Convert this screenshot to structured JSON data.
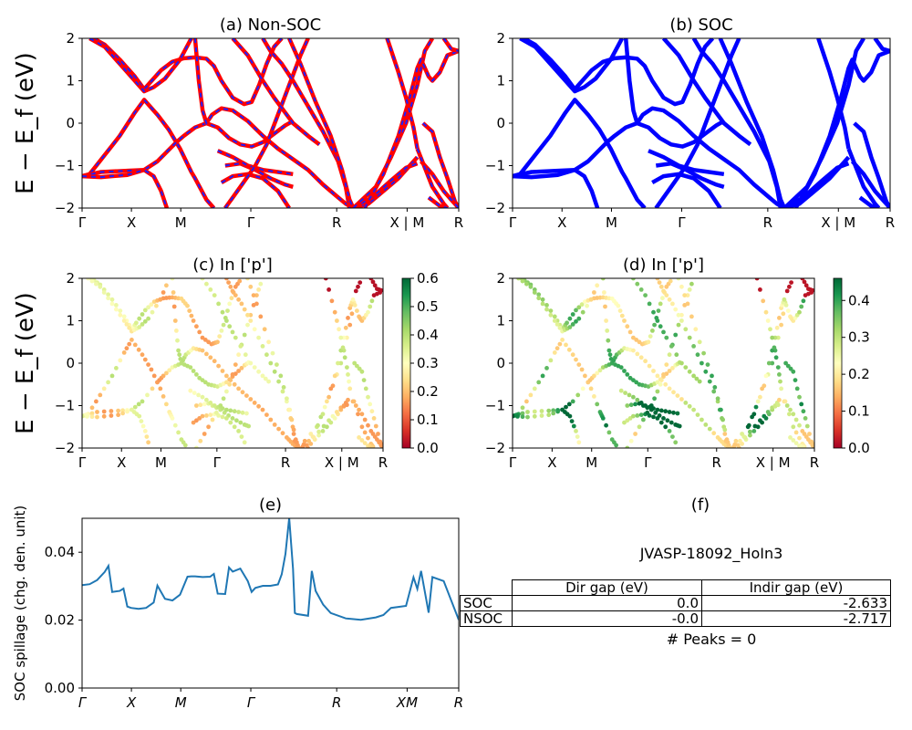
{
  "chart_data": [
    {
      "type": "line",
      "panel": "a",
      "title": "(a) Non-SOC",
      "ylabel": "E − E_f (eV)",
      "ylim": [
        -2,
        2
      ],
      "y_ticks": [
        "2",
        "1",
        "0",
        "−1",
        "−2"
      ],
      "k_labels": [
        "Γ",
        "X",
        "M",
        "Γ",
        "R",
        "X | M",
        "R"
      ],
      "series_colors": [
        "#ff0000",
        "#1f1fff"
      ],
      "bands": [
        [
          [
            0.0,
            -1.25
          ],
          [
            0.02,
            -1.2
          ],
          [
            0.06,
            -0.75
          ],
          [
            0.1,
            -0.3
          ],
          [
            0.14,
            0.25
          ],
          [
            0.165,
            0.55
          ],
          [
            0.2,
            0.2
          ],
          [
            0.23,
            -0.15
          ],
          [
            0.26,
            -0.6
          ],
          [
            0.29,
            -1.15
          ],
          [
            0.3,
            -1.3
          ],
          [
            0.33,
            -1.8
          ],
          [
            0.35,
            -2.0
          ]
        ],
        [
          [
            0.0,
            -1.25
          ],
          [
            0.05,
            -1.15
          ],
          [
            0.12,
            -1.12
          ],
          [
            0.165,
            -1.1
          ],
          [
            0.2,
            -0.9
          ],
          [
            0.25,
            -0.45
          ],
          [
            0.27,
            -0.3
          ],
          [
            0.3,
            -0.1
          ],
          [
            0.33,
            0.0
          ],
          [
            0.36,
            -0.1
          ],
          [
            0.39,
            -0.35
          ],
          [
            0.42,
            -0.5
          ],
          [
            0.45,
            -0.55
          ],
          [
            0.48,
            -0.45
          ],
          [
            0.51,
            -0.25
          ],
          [
            0.54,
            -0.05
          ],
          [
            0.56,
            0.05
          ]
        ],
        [
          [
            0.0,
            -1.25
          ],
          [
            0.05,
            -1.27
          ],
          [
            0.12,
            -1.22
          ],
          [
            0.165,
            -1.1
          ],
          [
            0.19,
            -1.25
          ],
          [
            0.21,
            -1.6
          ],
          [
            0.225,
            -2.0
          ]
        ],
        [
          [
            0.03,
            2.0
          ],
          [
            0.06,
            1.85
          ],
          [
            0.1,
            1.5
          ],
          [
            0.14,
            1.1
          ],
          [
            0.165,
            0.8
          ],
          [
            0.18,
            0.95
          ],
          [
            0.21,
            1.25
          ],
          [
            0.24,
            1.45
          ],
          [
            0.27,
            1.53
          ],
          [
            0.3,
            1.55
          ],
          [
            0.33,
            1.52
          ],
          [
            0.35,
            1.35
          ],
          [
            0.37,
            1.0
          ],
          [
            0.4,
            0.6
          ],
          [
            0.43,
            0.45
          ],
          [
            0.45,
            0.5
          ],
          [
            0.47,
            0.9
          ],
          [
            0.49,
            1.4
          ],
          [
            0.51,
            1.8
          ],
          [
            0.53,
            2.0
          ]
        ],
        [
          [
            0.02,
            2.0
          ],
          [
            0.06,
            1.8
          ],
          [
            0.1,
            1.4
          ],
          [
            0.14,
            1.0
          ],
          [
            0.165,
            0.75
          ],
          [
            0.19,
            0.85
          ],
          [
            0.22,
            1.05
          ],
          [
            0.26,
            1.5
          ],
          [
            0.29,
            2.0
          ]
        ],
        [
          [
            0.3,
            2.0
          ],
          [
            0.31,
            1.0
          ],
          [
            0.32,
            0.3
          ],
          [
            0.33,
            0.0
          ],
          [
            0.345,
            0.2
          ],
          [
            0.37,
            0.35
          ],
          [
            0.4,
            0.3
          ],
          [
            0.44,
            0.05
          ],
          [
            0.48,
            -0.3
          ],
          [
            0.52,
            -0.6
          ],
          [
            0.56,
            -0.85
          ],
          [
            0.6,
            -1.1
          ],
          [
            0.64,
            -1.45
          ],
          [
            0.68,
            -1.75
          ],
          [
            0.7,
            -1.9
          ],
          [
            0.72,
            -2.0
          ]
        ],
        [
          [
            0.38,
            -1.0
          ],
          [
            0.42,
            -0.95
          ],
          [
            0.46,
            -1.1
          ],
          [
            0.5,
            -1.3
          ],
          [
            0.54,
            -1.45
          ],
          [
            0.56,
            -1.5
          ]
        ],
        [
          [
            0.36,
            -0.65
          ],
          [
            0.4,
            -0.8
          ],
          [
            0.44,
            -1.0
          ],
          [
            0.48,
            -1.1
          ],
          [
            0.52,
            -1.15
          ],
          [
            0.56,
            -1.2
          ]
        ],
        [
          [
            0.37,
            -1.4
          ],
          [
            0.4,
            -1.25
          ],
          [
            0.44,
            -1.2
          ],
          [
            0.48,
            -1.3
          ],
          [
            0.52,
            -1.6
          ],
          [
            0.55,
            -2.0
          ]
        ],
        [
          [
            0.38,
            -2.0
          ],
          [
            0.42,
            -1.5
          ],
          [
            0.46,
            -1.0
          ],
          [
            0.49,
            -0.5
          ],
          [
            0.52,
            0.2
          ],
          [
            0.55,
            0.9
          ],
          [
            0.58,
            1.6
          ],
          [
            0.6,
            2.0
          ]
        ],
        [
          [
            0.4,
            2.0
          ],
          [
            0.44,
            1.6
          ],
          [
            0.48,
            1.0
          ],
          [
            0.51,
            0.6
          ],
          [
            0.56,
            0.0
          ],
          [
            0.6,
            -0.3
          ],
          [
            0.63,
            -0.5
          ]
        ],
        [
          [
            0.48,
            2.0
          ],
          [
            0.5,
            1.7
          ],
          [
            0.53,
            1.4
          ],
          [
            0.56,
            1.0
          ],
          [
            0.6,
            0.4
          ],
          [
            0.64,
            -0.2
          ],
          [
            0.68,
            -0.9
          ],
          [
            0.7,
            -1.5
          ],
          [
            0.71,
            -2.0
          ]
        ],
        [
          [
            0.55,
            2.0
          ],
          [
            0.58,
            1.4
          ],
          [
            0.62,
            0.5
          ],
          [
            0.66,
            -0.3
          ],
          [
            0.69,
            -1.1
          ],
          [
            0.71,
            -1.8
          ],
          [
            0.72,
            -2.0
          ]
        ],
        [
          [
            0.72,
            -2.0
          ],
          [
            0.76,
            -1.9
          ],
          [
            0.8,
            -1.6
          ],
          [
            0.84,
            -1.3
          ],
          [
            0.87,
            -1.0
          ],
          [
            0.89,
            -0.8
          ]
        ],
        [
          [
            0.72,
            -2.0
          ],
          [
            0.77,
            -1.75
          ],
          [
            0.82,
            -1.35
          ],
          [
            0.86,
            -1.05
          ],
          [
            0.89,
            -0.95
          ]
        ],
        [
          [
            0.72,
            -2.0
          ],
          [
            0.78,
            -1.5
          ],
          [
            0.82,
            -0.8
          ],
          [
            0.86,
            0.0
          ],
          [
            0.89,
            0.9
          ],
          [
            0.91,
            1.7
          ],
          [
            0.93,
            2.0
          ]
        ],
        [
          [
            0.75,
            -2.0
          ],
          [
            0.8,
            -1.2
          ],
          [
            0.84,
            -0.3
          ],
          [
            0.87,
            0.6
          ],
          [
            0.89,
            1.3
          ],
          [
            0.9,
            1.5
          ],
          [
            0.92,
            1.1
          ],
          [
            0.93,
            1.0
          ],
          [
            0.95,
            1.2
          ],
          [
            0.97,
            1.6
          ],
          [
            1.0,
            1.7
          ]
        ],
        [
          [
            0.81,
            2.0
          ],
          [
            0.84,
            1.2
          ],
          [
            0.86,
            0.6
          ],
          [
            0.88,
            -0.1
          ],
          [
            0.89,
            -0.6
          ]
        ],
        [
          [
            0.905,
            0.0
          ],
          [
            0.93,
            -0.2
          ],
          [
            0.95,
            -0.8
          ],
          [
            0.97,
            -1.3
          ],
          [
            0.99,
            -1.85
          ],
          [
            1.0,
            -2.0
          ]
        ],
        [
          [
            0.9,
            -0.9
          ],
          [
            0.93,
            -1.2
          ],
          [
            0.96,
            -1.6
          ],
          [
            0.98,
            -1.8
          ],
          [
            1.0,
            -2.0
          ]
        ],
        [
          [
            0.89,
            -0.6
          ],
          [
            0.93,
            -1.5
          ],
          [
            0.96,
            -1.9
          ],
          [
            0.97,
            -2.0
          ]
        ],
        [
          [
            0.92,
            -1.75
          ],
          [
            0.95,
            -1.95
          ],
          [
            0.97,
            -2.0
          ]
        ],
        [
          [
            0.96,
            2.0
          ],
          [
            0.98,
            1.75
          ],
          [
            1.0,
            1.7
          ]
        ]
      ]
    },
    {
      "type": "line",
      "panel": "b",
      "title": "(b) SOC",
      "ylim": [
        -2,
        2
      ],
      "y_ticks": [
        "2",
        "1",
        "0",
        "−1",
        "−2"
      ],
      "k_labels": [
        "Γ",
        "X",
        "M",
        "Γ",
        "R",
        "X | M",
        "R"
      ],
      "series_colors": [
        "#0000ff"
      ],
      "bands": "same band structure as panel a"
    },
    {
      "type": "scatter",
      "panel": "c",
      "title": "(c)  In ['p']",
      "ylabel": "E − E_f (eV)",
      "ylim": [
        -2,
        2
      ],
      "y_ticks": [
        "2",
        "1",
        "0",
        "−1",
        "−2"
      ],
      "k_labels": [
        "Γ",
        "X",
        "M",
        "Γ",
        "R",
        "X | M",
        "R"
      ],
      "colorbar": {
        "ticks": [
          "0.6",
          "0.5",
          "0.4",
          "0.3",
          "0.2",
          "0.1",
          "0.0"
        ],
        "range": [
          0.0,
          0.6
        ],
        "colormap": "RdYlGn"
      }
    },
    {
      "type": "scatter",
      "panel": "d",
      "title": "(d) In ['p']",
      "ylim": [
        -2,
        2
      ],
      "y_ticks": [
        "2",
        "1",
        "0",
        "−1",
        "−2"
      ],
      "k_labels": [
        "Γ",
        "X",
        "M",
        "Γ",
        "R",
        "X | M",
        "R"
      ],
      "colorbar": {
        "ticks": [
          "0.4",
          "0.3",
          "0.2",
          "0.1",
          "0.0"
        ],
        "range": [
          0.0,
          0.46
        ],
        "colormap": "RdYlGn"
      }
    },
    {
      "type": "line",
      "panel": "e",
      "title": "(e)",
      "ylabel": "SOC spillage (chg. den. unit)",
      "ylim": [
        0,
        0.05
      ],
      "y_ticks": [
        "0.04",
        "0.02",
        "0.00"
      ],
      "k_labels": [
        "Γ",
        "X",
        "M",
        "Γ",
        "R",
        "XM",
        "R"
      ],
      "color": "#1f77b4",
      "x": [
        0.0,
        0.02,
        0.04,
        0.06,
        0.07,
        0.08,
        0.1,
        0.11,
        0.12,
        0.13,
        0.15,
        0.17,
        0.19,
        0.2,
        0.22,
        0.24,
        0.26,
        0.28,
        0.29,
        0.3,
        0.32,
        0.34,
        0.35,
        0.36,
        0.38,
        0.39,
        0.4,
        0.42,
        0.44,
        0.45,
        0.46,
        0.48,
        0.5,
        0.52,
        0.53,
        0.54,
        0.55,
        0.56,
        0.565,
        0.57,
        0.6,
        0.61,
        0.62,
        0.64,
        0.66,
        0.7,
        0.74,
        0.78,
        0.8,
        0.82,
        0.86,
        0.88,
        0.89,
        0.9,
        0.92,
        0.93,
        0.96,
        1.0
      ],
      "y": [
        0.0303,
        0.0306,
        0.0318,
        0.0342,
        0.036,
        0.0283,
        0.0286,
        0.0293,
        0.024,
        0.0236,
        0.0233,
        0.0236,
        0.0252,
        0.0302,
        0.0263,
        0.0258,
        0.0275,
        0.0328,
        0.0329,
        0.0329,
        0.0327,
        0.0328,
        0.0336,
        0.0278,
        0.0277,
        0.0355,
        0.0343,
        0.0352,
        0.0315,
        0.0283,
        0.0295,
        0.0301,
        0.0301,
        0.0305,
        0.0335,
        0.0395,
        0.0501,
        0.0351,
        0.0221,
        0.0218,
        0.0213,
        0.0345,
        0.0286,
        0.0246,
        0.0221,
        0.0205,
        0.0201,
        0.0208,
        0.0215,
        0.0236,
        0.0242,
        0.0326,
        0.0292,
        0.0345,
        0.0222,
        0.0327,
        0.0315,
        0.0201
      ]
    }
  ],
  "panel_f": {
    "title": "(f)",
    "system": "JVASP-18092_HoIn3",
    "table": {
      "col_headers": [
        "Dir gap (eV)",
        "Indir gap (eV)"
      ],
      "rows": [
        {
          "label": "SOC",
          "dir": "0.0",
          "indir": "-2.633"
        },
        {
          "label": "NSOC",
          "dir": "-0.0",
          "indir": "-2.717"
        }
      ]
    },
    "peaks_text": "# Peaks = 0"
  }
}
